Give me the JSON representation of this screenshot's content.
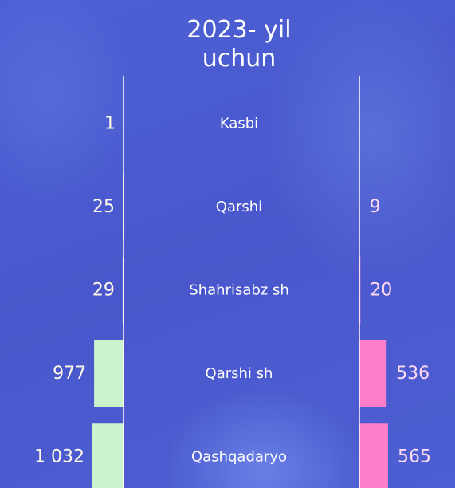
{
  "chart_data": {
    "type": "butterfly-bar",
    "title": "2023- yil uchun",
    "categories": [
      "Kasbi",
      "Qarshi",
      "Shahrisabz sh",
      "Qarshi sh",
      "Qashqadaryo"
    ],
    "series": [
      {
        "color": "#cdf3cd",
        "values": [
          1,
          25,
          29,
          977,
          1032
        ],
        "value_labels": [
          "1",
          "25",
          "29",
          "977",
          "1 032"
        ]
      },
      {
        "color": "#ff7fcc",
        "values": [
          null,
          9,
          20,
          536,
          565
        ]
      }
    ]
  }
}
